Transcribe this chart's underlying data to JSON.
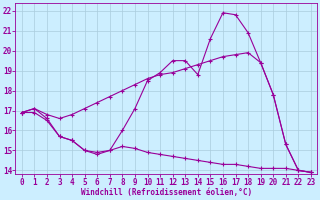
{
  "xlabel": "Windchill (Refroidissement éolien,°C)",
  "bg_color": "#cceeff",
  "line_color": "#990099",
  "grid_color": "#aaccdd",
  "xlim": [
    -0.5,
    23.5
  ],
  "ylim": [
    13.8,
    22.4
  ],
  "yticks": [
    14,
    15,
    16,
    17,
    18,
    19,
    20,
    21,
    22
  ],
  "xticks": [
    0,
    1,
    2,
    3,
    4,
    5,
    6,
    7,
    8,
    9,
    10,
    11,
    12,
    13,
    14,
    15,
    16,
    17,
    18,
    19,
    20,
    21,
    22,
    23
  ],
  "line1_x": [
    0,
    1,
    2,
    3,
    4,
    5,
    6,
    7,
    8,
    9,
    10,
    11,
    12,
    13,
    14,
    15,
    16,
    17,
    18,
    19,
    20,
    21,
    22,
    23
  ],
  "line1_y": [
    16.9,
    17.1,
    16.6,
    15.7,
    15.5,
    15.0,
    14.9,
    15.0,
    16.0,
    17.1,
    18.5,
    18.9,
    19.5,
    19.5,
    18.8,
    20.6,
    21.9,
    21.8,
    20.9,
    19.4,
    17.8,
    15.3,
    14.0,
    13.9
  ],
  "line2_x": [
    0,
    1,
    2,
    3,
    4,
    5,
    6,
    7,
    8,
    9,
    10,
    11,
    12,
    13,
    14,
    15,
    16,
    17,
    18,
    19,
    20,
    21,
    22,
    23
  ],
  "line2_y": [
    16.9,
    17.1,
    16.8,
    16.6,
    16.8,
    17.1,
    17.4,
    17.7,
    18.0,
    18.3,
    18.6,
    18.8,
    18.9,
    19.1,
    19.3,
    19.5,
    19.7,
    19.8,
    19.9,
    19.4,
    17.8,
    15.3,
    14.0,
    13.9
  ],
  "line3_x": [
    0,
    1,
    2,
    3,
    4,
    5,
    6,
    7,
    8,
    9,
    10,
    11,
    12,
    13,
    14,
    15,
    16,
    17,
    18,
    19,
    20,
    21,
    22,
    23
  ],
  "line3_y": [
    16.9,
    16.9,
    16.5,
    15.7,
    15.5,
    15.0,
    14.8,
    15.0,
    15.2,
    15.1,
    14.9,
    14.8,
    14.7,
    14.6,
    14.5,
    14.4,
    14.3,
    14.3,
    14.2,
    14.1,
    14.1,
    14.1,
    14.0,
    13.9
  ],
  "tick_fontsize": 5.5,
  "xlabel_fontsize": 5.5
}
